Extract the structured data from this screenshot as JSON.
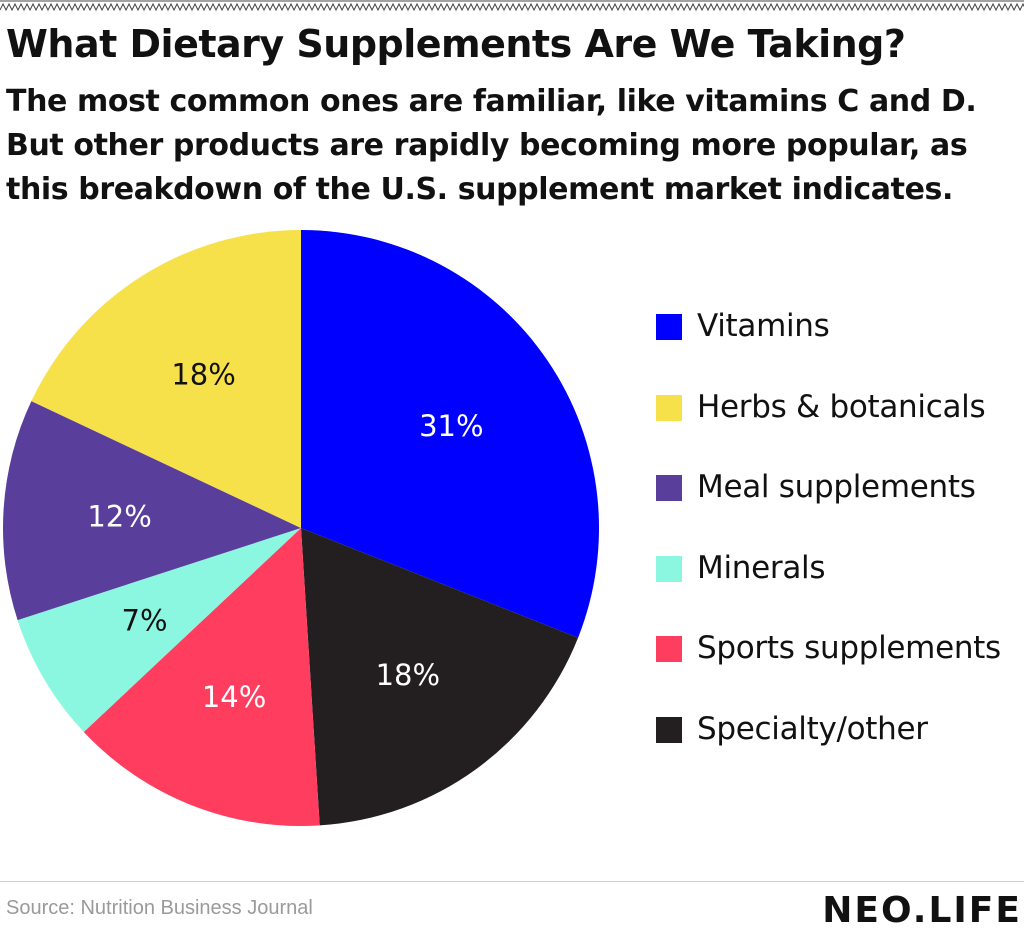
{
  "header": {
    "title": "What Dietary Supplements Are We Taking?",
    "subtitle_lines": [
      "The most common ones are familiar, like vitamins C and D.",
      "But other products are rapidly becoming more popular, as",
      "this breakdown of the U.S. supplement market indicates."
    ]
  },
  "chart_data": {
    "type": "pie",
    "title": "What Dietary Supplements Are We Taking?",
    "legend_position": "right",
    "slices": [
      {
        "label": "Vitamins",
        "value": 31,
        "display": "31%",
        "color": "#0000fe",
        "label_color": "#ffffff"
      },
      {
        "label": "Specialty/other",
        "value": 18,
        "display": "18%",
        "color": "#231f20",
        "label_color": "#ffffff"
      },
      {
        "label": "Sports supplements",
        "value": 14,
        "display": "14%",
        "color": "#ff3d5f",
        "label_color": "#ffffff"
      },
      {
        "label": "Minerals",
        "value": 7,
        "display": "7%",
        "color": "#8cf7e0",
        "label_color": "#111111"
      },
      {
        "label": "Meal supplements",
        "value": 12,
        "display": "12%",
        "color": "#5a3e9c",
        "label_color": "#ffffff"
      },
      {
        "label": "Herbs & botanicals",
        "value": 18,
        "display": "18%",
        "color": "#f7e14a",
        "label_color": "#111111"
      }
    ],
    "legend_order": [
      "Vitamins",
      "Herbs & botanicals",
      "Meal supplements",
      "Minerals",
      "Sports supplements",
      "Specialty/other"
    ]
  },
  "legend": {
    "items": [
      {
        "label": "Vitamins",
        "color": "#0000fe"
      },
      {
        "label": "Herbs & botanicals",
        "color": "#f7e14a"
      },
      {
        "label": "Meal supplements",
        "color": "#5a3e9c"
      },
      {
        "label": "Minerals",
        "color": "#8cf7e0"
      },
      {
        "label": "Sports supplements",
        "color": "#ff3d5f"
      },
      {
        "label": "Specialty/other",
        "color": "#231f20"
      }
    ]
  },
  "footer": {
    "source": "Source: Nutrition Business Journal",
    "brand": "NEO.LIFE"
  }
}
